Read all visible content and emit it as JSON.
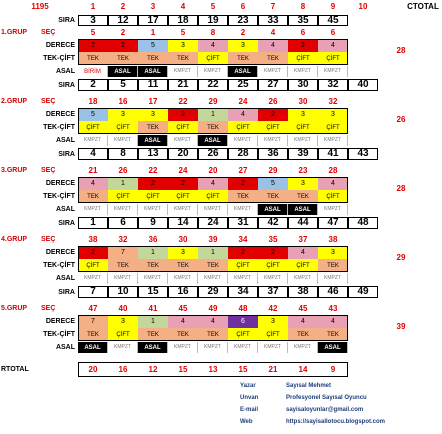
{
  "corner_number": "1195",
  "column_numbers": [
    "1",
    "2",
    "3",
    "4",
    "5",
    "6",
    "7",
    "8",
    "9",
    "10"
  ],
  "ctotal_label": "CTOTAL",
  "colors": {
    "red": "#e00000",
    "yellow": "#ffff00",
    "pink": "#f4b084",
    "olive": "#c4d79b",
    "blue": "#9bc2e6",
    "purple": "#7030a0",
    "rose": "#e8a0b4",
    "black": "#000000",
    "white": "#ffffff",
    "info_blue": "#1f3d7a"
  },
  "top_sira": {
    "label": "SIRA",
    "values": [
      "3",
      "12",
      "17",
      "18",
      "19",
      "23",
      "33",
      "35",
      "45"
    ]
  },
  "groups": [
    {
      "title": "1.GRUP",
      "sec": {
        "label": "SEÇ",
        "values": [
          "5",
          "2",
          "1",
          "5",
          "8",
          "2",
          "4",
          "6",
          "6"
        ]
      },
      "derece": {
        "label": "DERECE",
        "values": [
          "2",
          "2",
          "5",
          "3",
          "4",
          "3",
          "4",
          "2",
          "4"
        ],
        "colors": [
          "red",
          "red",
          "blue",
          "yellow",
          "rose",
          "yellow",
          "rose",
          "red",
          "rose"
        ]
      },
      "tekcift": {
        "label": "TEK-ÇİFT",
        "values": [
          "TEK",
          "TEK",
          "TEK",
          "TEK",
          "ÇİFT",
          "TEK",
          "TEK",
          "ÇİFT",
          "ÇİFT"
        ],
        "colors": [
          "pink",
          "pink",
          "pink",
          "pink",
          "yellow",
          "pink",
          "pink",
          "yellow",
          "yellow"
        ]
      },
      "asal": {
        "label": "ASAL",
        "values": [
          "BİRİM",
          "ASAL",
          "ASAL",
          "KMPZT",
          "KMPZT",
          "ASAL",
          "KMPZT",
          "KMPZT",
          "KMPZT"
        ]
      },
      "total": "28",
      "sira": {
        "label": "SIRA",
        "values": [
          "2",
          "5",
          "11",
          "21",
          "22",
          "25",
          "27",
          "30",
          "32",
          "40"
        ]
      }
    },
    {
      "title": "2.GRUP",
      "sec": {
        "label": "SEÇ",
        "values": [
          "18",
          "16",
          "17",
          "22",
          "29",
          "24",
          "26",
          "30",
          "32"
        ]
      },
      "derece": {
        "label": "DERECE",
        "values": [
          "5",
          "3",
          "3",
          "2",
          "1",
          "4",
          "2",
          "3",
          "3"
        ],
        "colors": [
          "blue",
          "yellow",
          "yellow",
          "red",
          "olive",
          "rose",
          "red",
          "yellow",
          "yellow"
        ]
      },
      "tekcift": {
        "label": "TEK-ÇİFT",
        "values": [
          "ÇİFT",
          "ÇİFT",
          "TEK",
          "ÇİFT",
          "TEK",
          "ÇİFT",
          "ÇİFT",
          "ÇİFT",
          "ÇİFT"
        ],
        "colors": [
          "yellow",
          "yellow",
          "pink",
          "yellow",
          "pink",
          "yellow",
          "yellow",
          "yellow",
          "yellow"
        ]
      },
      "asal": {
        "label": "ASAL",
        "values": [
          "KMPZT",
          "KMPZT",
          "ASAL",
          "KMPZT",
          "ASAL",
          "KMPZT",
          "KMPZT",
          "KMPZT",
          "KMPZT"
        ]
      },
      "total": "26",
      "sira": {
        "label": "SIRA",
        "values": [
          "4",
          "8",
          "13",
          "20",
          "26",
          "28",
          "36",
          "39",
          "41",
          "43"
        ]
      }
    },
    {
      "title": "3.GRUP",
      "sec": {
        "label": "SEÇ",
        "values": [
          "21",
          "26",
          "22",
          "24",
          "20",
          "27",
          "29",
          "23",
          "28"
        ]
      },
      "derece": {
        "label": "DERECE",
        "values": [
          "4",
          "1",
          "2",
          "2",
          "4",
          "2",
          "5",
          "3",
          "4"
        ],
        "colors": [
          "rose",
          "olive",
          "red",
          "red",
          "rose",
          "red",
          "blue",
          "yellow",
          "rose"
        ]
      },
      "tekcift": {
        "label": "TEK-ÇİFT",
        "values": [
          "TEK",
          "ÇİFT",
          "ÇİFT",
          "ÇİFT",
          "ÇİFT",
          "TEK",
          "TEK",
          "TEK",
          "ÇİFT"
        ],
        "colors": [
          "pink",
          "yellow",
          "yellow",
          "yellow",
          "yellow",
          "pink",
          "pink",
          "pink",
          "yellow"
        ]
      },
      "asal": {
        "label": "ASAL",
        "values": [
          "KMPZT",
          "KMPZT",
          "KMPZT",
          "KMPZT",
          "KMPZT",
          "KMPZT",
          "ASAL",
          "ASAL",
          "KMPZT"
        ]
      },
      "total": "28",
      "sira": {
        "label": "SIRA",
        "values": [
          "1",
          "6",
          "9",
          "14",
          "24",
          "31",
          "42",
          "44",
          "47",
          "48"
        ]
      }
    },
    {
      "title": "4.GRUP",
      "sec": {
        "label": "SEÇ",
        "values": [
          "38",
          "32",
          "36",
          "30",
          "39",
          "34",
          "35",
          "37",
          "38"
        ]
      },
      "derece": {
        "label": "DERECE",
        "values": [
          "2",
          "7",
          "1",
          "3",
          "1",
          "2",
          "2",
          "4",
          "3"
        ],
        "colors": [
          "red",
          "pink",
          "olive",
          "yellow",
          "olive",
          "red",
          "red",
          "rose",
          "yellow"
        ]
      },
      "tekcift": {
        "label": "TEK-ÇİFT",
        "values": [
          "ÇİFT",
          "TEK",
          "TEK",
          "TEK",
          "TEK",
          "ÇİFT",
          "ÇİFT",
          "ÇİFT",
          "TEK"
        ],
        "colors": [
          "yellow",
          "pink",
          "pink",
          "pink",
          "pink",
          "yellow",
          "yellow",
          "yellow",
          "pink"
        ]
      },
      "asal": {
        "label": "ASAL",
        "values": [
          "KMPZT",
          "KMPZT",
          "KMPZT",
          "KMPZT",
          "KMPZT",
          "KMPZT",
          "KMPZT",
          "KMPZT",
          "KMPZT"
        ]
      },
      "total": "29",
      "sira": {
        "label": "SIRA",
        "values": [
          "7",
          "10",
          "15",
          "16",
          "29",
          "34",
          "37",
          "38",
          "46",
          "49"
        ]
      }
    },
    {
      "title": "5.GRUP",
      "sec": {
        "label": "SEÇ",
        "values": [
          "47",
          "40",
          "41",
          "45",
          "49",
          "48",
          "42",
          "45",
          "43"
        ]
      },
      "derece": {
        "label": "DERECE",
        "values": [
          "7",
          "3",
          "1",
          "4",
          "4",
          "6",
          "3",
          "4",
          "4"
        ],
        "colors": [
          "pink",
          "yellow",
          "olive",
          "rose",
          "rose",
          "purple",
          "yellow",
          "rose",
          "rose"
        ]
      },
      "tekcift": {
        "label": "TEK-ÇİFT",
        "values": [
          "TEK",
          "ÇİFT",
          "TEK",
          "TEK",
          "TEK",
          "ÇİFT",
          "ÇİFT",
          "TEK",
          "TEK"
        ],
        "colors": [
          "pink",
          "yellow",
          "pink",
          "pink",
          "pink",
          "yellow",
          "yellow",
          "pink",
          "pink"
        ]
      },
      "asal": {
        "label": "ASAL",
        "values": [
          "ASAL",
          "KMPZT",
          "ASAL",
          "KMPZT",
          "KMPZT",
          "KMPZT",
          "KMPZT",
          "KMPZT",
          "ASAL"
        ]
      },
      "total": "39",
      "sira": null
    }
  ],
  "rtotal": {
    "label": "RTOTAL",
    "values": [
      "20",
      "16",
      "12",
      "15",
      "13",
      "15",
      "21",
      "14",
      "9"
    ]
  },
  "info": [
    {
      "key": "Yazar",
      "value": "Sayısal Mehmet"
    },
    {
      "key": "Unvan",
      "value": "Profesyonel Sayısal Oyuncu"
    },
    {
      "key": "E-mail",
      "value": "sayisaloyunlar@gmail.com"
    },
    {
      "key": "Web",
      "value": "https://sayisallotocu.blogspot.com"
    }
  ]
}
